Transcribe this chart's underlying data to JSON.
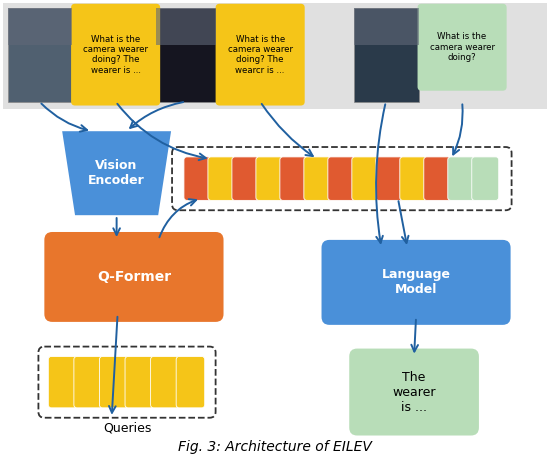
{
  "title": "Fig. 3: Architecture of EILEV",
  "vision_encoder": {
    "label": "Vision\nEncoder",
    "color": "#4a90d9",
    "text_color": "white"
  },
  "qformer": {
    "label": "Q-Former",
    "color": "#e8762c",
    "text_color": "white"
  },
  "language_model": {
    "label": "Language\nModel",
    "color": "#4a90d9",
    "text_color": "white"
  },
  "queries_box": {
    "label": "Queries",
    "tile_color": "#f5c518",
    "n_tiles": 6
  },
  "output_box": {
    "label": "The\nwearer\nis ...",
    "color": "#b8ddb8"
  },
  "token_strip": {
    "colors_sequence": [
      "#e05a30",
      "#f5c518",
      "#e05a30",
      "#f5c518",
      "#e05a30",
      "#f5c518",
      "#e05a30",
      "#f5c518",
      "#e05a30",
      "#f5c518",
      "#e05a30",
      "#b8ddb8",
      "#b8ddb8"
    ],
    "n_tokens": 13
  },
  "arrow_color": "#2060a0",
  "arrow_lw": 1.4,
  "top_bg_color": "#e0e0e0",
  "img_colors": [
    "#506070",
    "#151520",
    "#2a3a4a"
  ],
  "bubble_colors": [
    "#f5c518",
    "#f5c518",
    "#b8ddb8"
  ],
  "bubble_texts": [
    "What is the\ncamera wearer\ndoing? The\nwearer is ...",
    "What is the\ncamera wearer\ndoing? The\nwearcr is ...",
    "What is the\ncamera wearer\ndoing?"
  ]
}
